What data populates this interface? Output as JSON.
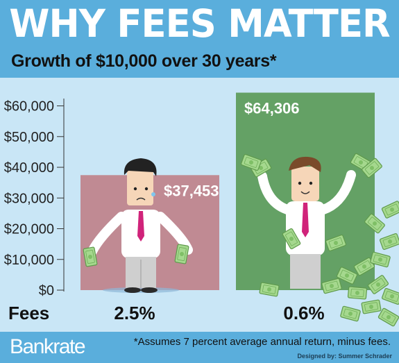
{
  "header": {
    "title": "WHY FEES MATTER",
    "subtitle": "Growth of $10,000 over 30 years*"
  },
  "chart_data": {
    "type": "bar",
    "categories": [
      "2.5%",
      "0.6%"
    ],
    "values": [
      37453,
      64306
    ],
    "value_labels": [
      "$37,453",
      "$64,306"
    ],
    "x_axis_label": "Fees",
    "ylim": [
      0,
      66000
    ],
    "y_ticks": [
      0,
      10000,
      20000,
      30000,
      40000,
      50000,
      60000
    ],
    "y_tick_labels": [
      "$0",
      "$10,000",
      "$20,000",
      "$30,000",
      "$40,000",
      "$50,000",
      "$60,000"
    ],
    "bar_colors": [
      "#c08a93",
      "#64a165"
    ],
    "grid": false,
    "legend": "none"
  },
  "footer": {
    "brand": "Bankrate",
    "footnote": "*Assumes 7 percent average annual return, minus fees.",
    "credit": "Designed by: Summer Schrader"
  },
  "colors": {
    "header_bg": "#5aaedc",
    "chart_bg": "#c9e6f6",
    "text_dark": "#111111"
  },
  "icons": [
    "sad-businessman-icon",
    "happy-businessman-icon",
    "cash-bill-icon",
    "cash-pile-icon"
  ]
}
